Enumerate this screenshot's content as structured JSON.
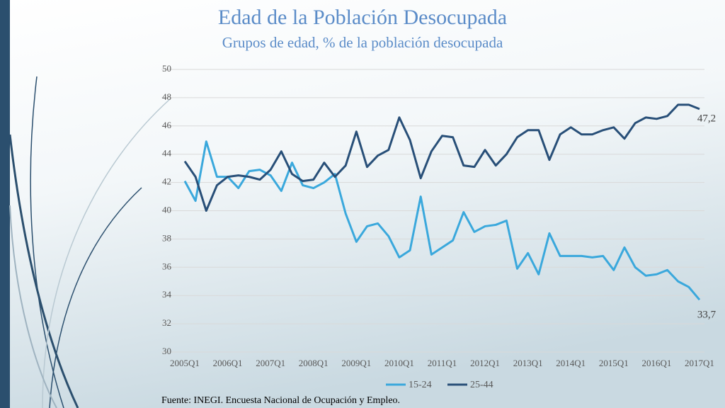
{
  "chart_data": {
    "type": "line",
    "title": "Edad de la Población Desocupada",
    "subtitle": "Grupos de edad, % de la población desocupada",
    "source": "Fuente: INEGI. Encuesta Nacional de Ocupación y Empleo.",
    "categories": [
      "2005Q1",
      null,
      null,
      null,
      "2006Q1",
      null,
      null,
      null,
      "2007Q1",
      null,
      null,
      null,
      "2008Q1",
      null,
      null,
      null,
      "2009Q1",
      null,
      null,
      null,
      "2010Q1",
      null,
      null,
      null,
      "2011Q1",
      null,
      null,
      null,
      "2012Q1",
      null,
      null,
      null,
      "2013Q1",
      null,
      null,
      null,
      "2014Q1",
      null,
      null,
      null,
      "2015Q1",
      null,
      null,
      null,
      "2016Q1",
      null,
      null,
      null,
      "2017Q1"
    ],
    "series": [
      {
        "name": "15-24",
        "color": "#3aa8dc",
        "values": [
          42.1,
          40.7,
          44.9,
          42.4,
          42.4,
          41.6,
          42.8,
          42.9,
          42.5,
          41.4,
          43.4,
          41.8,
          41.6,
          42.0,
          42.6,
          39.8,
          37.8,
          38.9,
          39.1,
          38.2,
          36.7,
          37.2,
          41.0,
          36.9,
          37.4,
          37.9,
          39.9,
          38.5,
          38.9,
          39.0,
          39.3,
          35.9,
          37.0,
          35.5,
          38.4,
          36.8,
          36.8,
          36.8,
          36.7,
          36.8,
          35.8,
          37.4,
          36.0,
          35.4,
          35.5,
          35.8,
          35.0,
          34.6,
          33.7
        ],
        "value_labels": [
          null,
          null,
          null,
          null,
          null,
          null,
          null,
          null,
          null,
          null,
          null,
          null,
          null,
          null,
          null,
          null,
          null,
          null,
          null,
          null,
          null,
          null,
          null,
          null,
          null,
          null,
          null,
          null,
          null,
          null,
          null,
          null,
          null,
          null,
          null,
          null,
          null,
          null,
          null,
          null,
          null,
          null,
          null,
          null,
          null,
          null,
          null,
          null,
          "33,7"
        ]
      },
      {
        "name": "25-44",
        "color": "#284f78",
        "values": [
          43.5,
          42.4,
          40.0,
          41.8,
          42.4,
          42.5,
          42.4,
          42.2,
          42.9,
          44.2,
          42.6,
          42.1,
          42.2,
          43.4,
          42.4,
          43.2,
          45.6,
          43.1,
          43.9,
          44.3,
          46.6,
          45.0,
          42.3,
          44.2,
          45.3,
          45.2,
          43.2,
          43.1,
          44.3,
          43.2,
          44.0,
          45.2,
          45.7,
          45.7,
          43.6,
          45.4,
          45.9,
          45.4,
          45.4,
          45.7,
          45.9,
          45.1,
          46.2,
          46.6,
          46.5,
          46.7,
          47.5,
          47.5,
          47.2
        ],
        "value_labels": [
          null,
          null,
          null,
          null,
          null,
          null,
          null,
          null,
          null,
          null,
          null,
          null,
          null,
          null,
          null,
          null,
          null,
          null,
          null,
          null,
          null,
          null,
          null,
          null,
          null,
          null,
          null,
          null,
          null,
          null,
          null,
          null,
          null,
          null,
          null,
          null,
          null,
          null,
          null,
          null,
          null,
          null,
          null,
          null,
          null,
          null,
          null,
          null,
          "47,2"
        ]
      }
    ],
    "ylim": [
      30,
      50
    ],
    "yticks": [
      30,
      32,
      34,
      36,
      38,
      40,
      42,
      44,
      46,
      48,
      50
    ],
    "grid": true,
    "legend": "bottom"
  }
}
